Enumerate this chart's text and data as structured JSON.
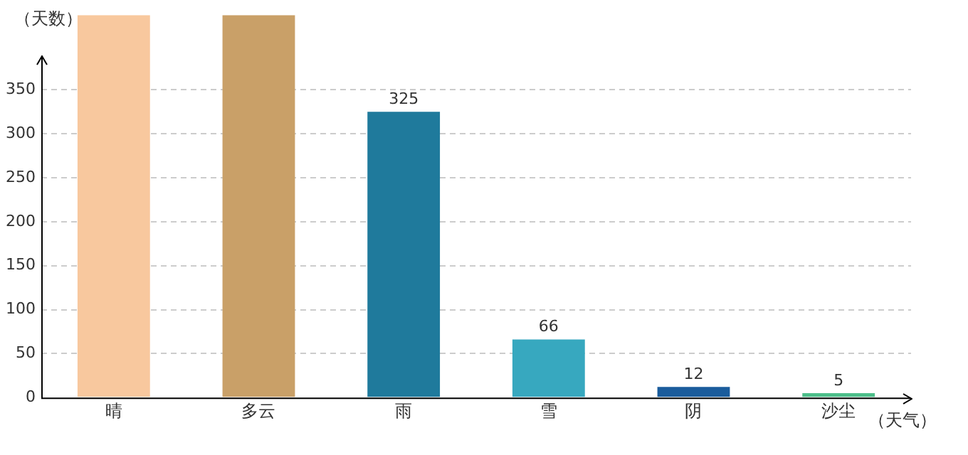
{
  "chart_data": {
    "type": "bar",
    "ylabel": "（天数）",
    "xlabel": "（天气）",
    "categories": [
      "晴",
      "多云",
      "雨",
      "雪",
      "阴",
      "沙尘"
    ],
    "values": [
      435,
      435,
      325,
      66,
      12,
      5
    ],
    "colors": [
      "#f8c89e",
      "#c9a068",
      "#1f7a9c",
      "#37a8bf",
      "#1a5c9c",
      "#4dbf8a"
    ],
    "value_labels": [
      null,
      null,
      "325",
      "66",
      "12",
      "5"
    ],
    "ylim": [
      0,
      435
    ],
    "yticks": [
      0,
      50,
      100,
      150,
      200,
      250,
      300,
      350
    ],
    "grid": "y",
    "legend": false
  }
}
